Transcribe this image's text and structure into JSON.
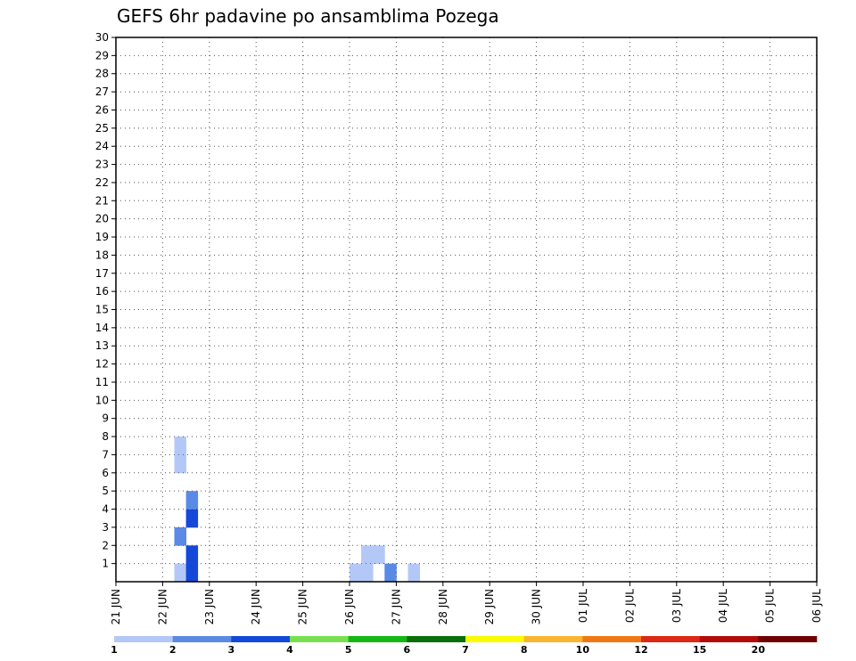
{
  "chart_data": {
    "type": "heatmap",
    "title": "GEFS 6hr padavine po ansamblima Pozega",
    "xlabel": "",
    "ylabel": "",
    "x_tick_labels": [
      "21 JUN",
      "22 JUN",
      "23 JUN",
      "24 JUN",
      "25 JUN",
      "26 JUN",
      "27 JUN",
      "28 JUN",
      "29 JUN",
      "30 JUN",
      "01 JUL",
      "02 JUL",
      "03 JUL",
      "04 JUL",
      "05 JUL",
      "06 JUL"
    ],
    "y_tick_labels": [
      "1",
      "2",
      "3",
      "4",
      "5",
      "6",
      "7",
      "8",
      "9",
      "10",
      "11",
      "12",
      "13",
      "14",
      "15",
      "16",
      "17",
      "18",
      "19",
      "20",
      "21",
      "22",
      "23",
      "24",
      "25",
      "26",
      "27",
      "28",
      "29",
      "30"
    ],
    "xlim_days": [
      0,
      15
    ],
    "ylim": [
      0,
      30
    ],
    "grid": true,
    "legend_position": "bottom",
    "legend_labels": [
      "1",
      "2",
      "3",
      "4",
      "5",
      "6",
      "7",
      "8",
      "10",
      "12",
      "15",
      "20"
    ],
    "legend_colors": [
      "#b4c8f8",
      "#5a8ae6",
      "#1448d8",
      "#78e050",
      "#14b814",
      "#0a6e0a",
      "#fafa00",
      "#fab432",
      "#f07814",
      "#dc2814",
      "#b40a0a",
      "#700000"
    ],
    "cells": [
      [
        1.25,
        0,
        "#b4c8f8"
      ],
      [
        1.5,
        0,
        "#1448d8"
      ],
      [
        1.5,
        1,
        "#1448d8"
      ],
      [
        1.5,
        3,
        "#1448d8"
      ],
      [
        1.25,
        2,
        "#5a8ae6"
      ],
      [
        1.5,
        4,
        "#5a8ae6"
      ],
      [
        1.25,
        6,
        "#b4c8f8"
      ],
      [
        1.25,
        7,
        "#b4c8f8"
      ],
      [
        5.0,
        0,
        "#b4c8f8"
      ],
      [
        5.25,
        0,
        "#b4c8f8"
      ],
      [
        5.25,
        1,
        "#b4c8f8"
      ],
      [
        5.5,
        1,
        "#b4c8f8"
      ],
      [
        5.75,
        0,
        "#5a8ae6"
      ],
      [
        6.25,
        0,
        "#b4c8f8"
      ]
    ],
    "cell_width_days": 0.25,
    "cell_height": 1
  }
}
